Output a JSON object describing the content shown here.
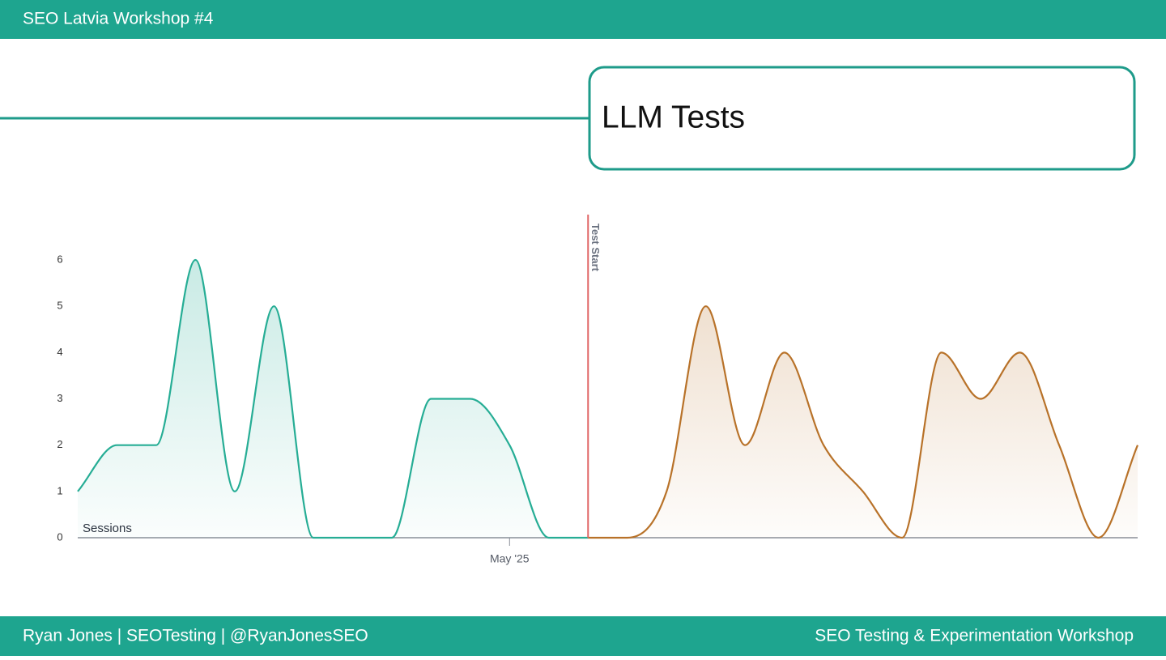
{
  "header": {
    "title": "SEO Latvia Workshop #4"
  },
  "slide": {
    "title": "LLM Tests"
  },
  "chart_data": {
    "type": "area",
    "categories": [
      null,
      null,
      null,
      null,
      null,
      null,
      null,
      null,
      null,
      null,
      null,
      "May '25",
      null,
      null,
      null,
      null,
      null,
      null,
      null,
      null,
      null,
      null,
      null,
      null,
      null,
      null,
      null,
      null
    ],
    "series": [
      {
        "color": "#26ad95",
        "values": [
          1,
          2,
          2,
          6,
          1,
          5,
          0,
          0,
          0,
          3,
          3,
          2,
          0,
          0,
          null,
          null,
          null,
          null,
          null,
          null,
          null,
          null,
          null,
          null,
          null,
          null,
          null,
          null
        ]
      },
      {
        "color": "#b87229",
        "values": [
          null,
          null,
          null,
          null,
          null,
          null,
          null,
          null,
          null,
          null,
          null,
          null,
          null,
          0,
          0,
          1,
          5,
          2,
          4,
          2,
          1,
          0,
          4,
          3,
          4,
          2,
          0,
          2
        ]
      }
    ],
    "y_label": "Sessions",
    "ylim": [
      0,
      6.1
    ],
    "yticks": [
      0,
      1,
      2,
      3,
      4,
      5,
      6
    ],
    "annotation": {
      "text": "Test Start",
      "index": 13,
      "color": "#e06666"
    }
  },
  "footer": {
    "left": "Ryan Jones | SEOTesting | @RyanJonesSEO",
    "right": "SEO Testing & Experimentation Workshop"
  }
}
